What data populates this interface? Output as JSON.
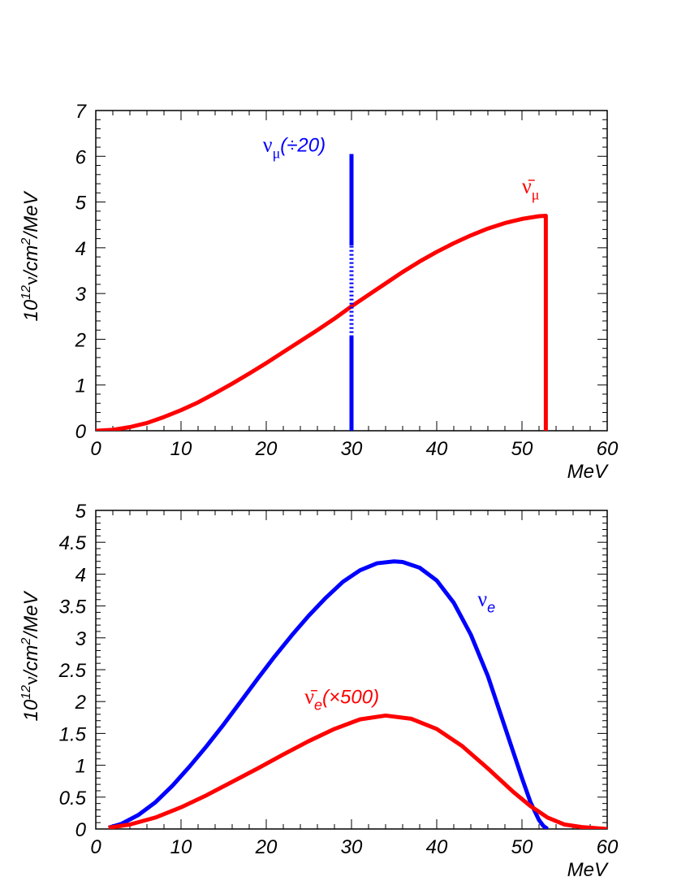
{
  "chart_data": [
    {
      "type": "line",
      "xlabel": "MeV",
      "ylabel": {
        "base": "10",
        "exp": "12",
        "nu": "ν",
        "mid": "/cm",
        "exp2": "2",
        "tail": "/MeV"
      },
      "xlim": [
        0,
        60
      ],
      "ylim": [
        0,
        7
      ],
      "x_ticks": [
        "0",
        "10",
        "20",
        "30",
        "40",
        "50",
        "60"
      ],
      "y_ticks": [
        "0",
        "1",
        "2",
        "3",
        "4",
        "5",
        "6",
        "7"
      ],
      "series": [
        {
          "color": "#ff0000",
          "x": [
            0,
            2,
            4,
            6,
            8,
            10,
            12,
            14,
            16,
            18,
            20,
            22,
            24,
            26,
            28,
            30,
            32,
            34,
            36,
            38,
            40,
            42,
            44,
            46,
            48,
            50,
            52,
            52.8,
            52.8
          ],
          "y": [
            0,
            0.02,
            0.08,
            0.17,
            0.3,
            0.45,
            0.62,
            0.82,
            1.03,
            1.25,
            1.48,
            1.72,
            1.96,
            2.2,
            2.45,
            2.72,
            2.97,
            3.22,
            3.47,
            3.7,
            3.91,
            4.1,
            4.27,
            4.42,
            4.54,
            4.63,
            4.69,
            4.7,
            0
          ]
        }
      ],
      "lines": [
        {
          "color": "#0000ff",
          "x": 30,
          "segments": [
            [
              0,
              2.05
            ],
            [
              4.05,
              6.05
            ]
          ],
          "dotted": [
            2.05,
            4.05
          ]
        }
      ],
      "annotations": [
        {
          "id": "numu",
          "color": "#0000ff",
          "greek": "ν",
          "sub": "μ",
          "text": "(÷20)",
          "x": 19.6,
          "y": 6.1
        },
        {
          "id": "numubar",
          "color": "#ff0000",
          "greek": "ν̄",
          "sub": "μ",
          "text": "",
          "x": 50,
          "y": 5.2
        }
      ]
    },
    {
      "type": "line",
      "xlabel": "MeV",
      "ylabel": {
        "base": "10",
        "exp": "12",
        "nu": "ν",
        "mid": "/cm",
        "exp2": "2",
        "tail": "/MeV"
      },
      "xlim": [
        0,
        60
      ],
      "ylim": [
        0,
        5
      ],
      "x_ticks": [
        "0",
        "10",
        "20",
        "30",
        "40",
        "50",
        "60"
      ],
      "y_ticks": [
        "0",
        "0.5",
        "1",
        "1.5",
        "2",
        "2.5",
        "3",
        "3.5",
        "4",
        "4.5",
        "5"
      ],
      "series": [
        {
          "color": "#0000ff",
          "x": [
            1.5,
            3,
            5,
            7,
            9,
            11,
            13,
            15,
            17,
            19,
            21,
            23,
            25,
            27,
            29,
            31,
            33,
            35,
            36,
            38,
            40,
            42,
            44,
            46,
            48,
            50,
            51,
            52,
            52.5,
            53
          ],
          "y": [
            0.02,
            0.08,
            0.22,
            0.42,
            0.68,
            0.98,
            1.3,
            1.64,
            2.0,
            2.36,
            2.71,
            3.04,
            3.35,
            3.63,
            3.88,
            4.06,
            4.17,
            4.2,
            4.19,
            4.1,
            3.9,
            3.55,
            3.05,
            2.4,
            1.6,
            0.8,
            0.42,
            0.14,
            0.05,
            0
          ]
        },
        {
          "color": "#ff0000",
          "x": [
            1.5,
            4,
            7,
            10,
            13,
            16,
            19,
            22,
            25,
            28,
            31,
            34,
            37,
            40,
            43,
            46,
            49,
            51,
            52,
            53,
            55,
            57,
            59,
            60
          ],
          "y": [
            0.02,
            0.07,
            0.18,
            0.34,
            0.53,
            0.74,
            0.95,
            1.17,
            1.38,
            1.57,
            1.72,
            1.78,
            1.73,
            1.57,
            1.3,
            0.95,
            0.58,
            0.36,
            0.27,
            0.18,
            0.07,
            0.03,
            0.01,
            0
          ]
        }
      ],
      "annotations": [
        {
          "id": "nue",
          "color": "#0000ff",
          "greek": "ν",
          "sub": "e",
          "text": "",
          "x": 44.8,
          "y": 3.5
        },
        {
          "id": "nuebar",
          "color": "#ff0000",
          "greek": "ν̄",
          "sub": "e",
          "text": "(×500)",
          "x": 24.5,
          "y": 1.97
        }
      ]
    }
  ]
}
